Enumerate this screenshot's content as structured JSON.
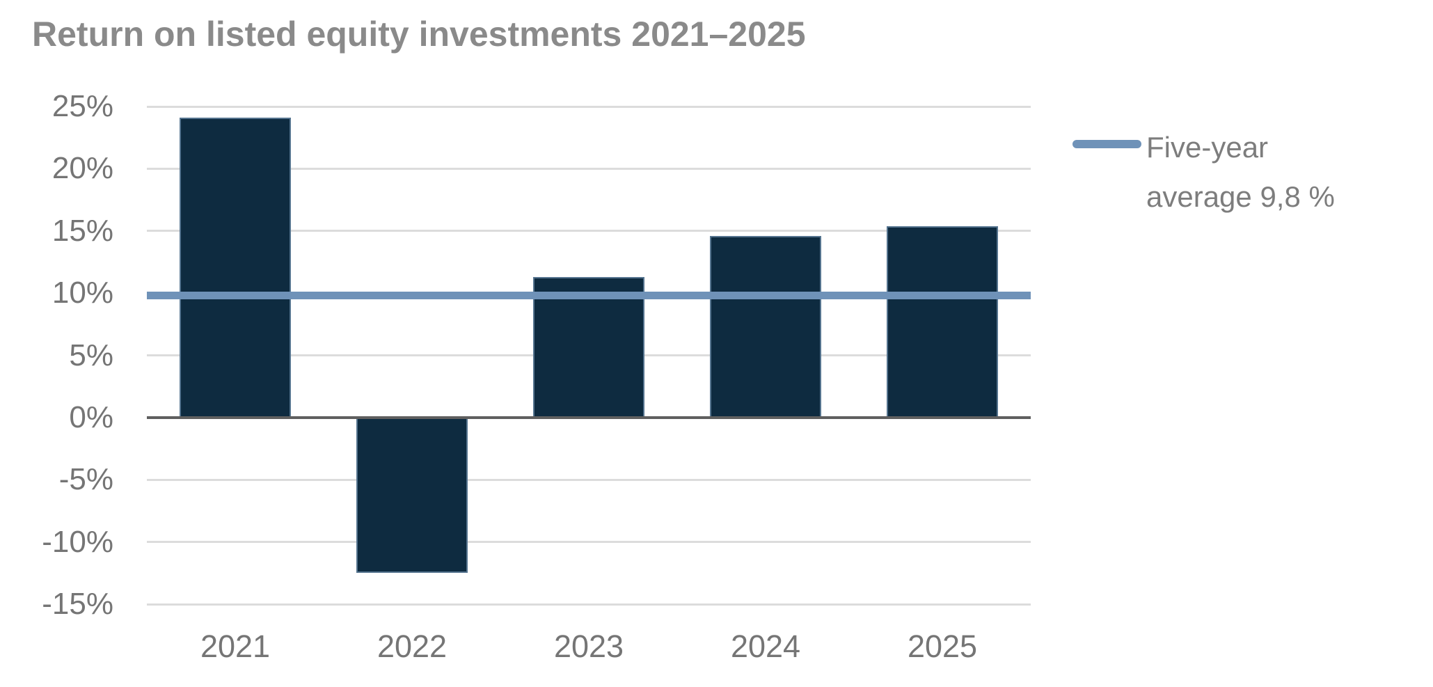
{
  "chart_data": {
    "type": "bar",
    "title": "Return on listed equity investments 2021–2025",
    "categories": [
      "2021",
      "2022",
      "2023",
      "2024",
      "2025"
    ],
    "values": [
      24.1,
      -12.5,
      11.3,
      14.6,
      15.4
    ],
    "unit": "%",
    "xlabel": "",
    "ylabel": "",
    "ylim": [
      -15,
      25
    ],
    "yticks": [
      25,
      20,
      15,
      10,
      5,
      0,
      -5,
      -10,
      -15
    ],
    "ytick_suffix": "%",
    "grid": true,
    "bar_color": "#0e2b40",
    "bar_border_color": "#55748f",
    "gridline_color": "#dcdcdc",
    "zero_line_color": "#5f5f5f",
    "reference_line": {
      "value": 9.8,
      "label": "Five-year average 9,8 %",
      "color": "#6f92b8"
    },
    "legend_position": "right"
  },
  "legend": {
    "lines": [
      "Five-year",
      "average 9,8 %"
    ],
    "swatch_color": "#6f92b8"
  },
  "colors": {
    "background": "#ffffff",
    "title_text": "#8a8a8a",
    "tick_text": "#757575",
    "legend_text": "#7d7d7d"
  }
}
